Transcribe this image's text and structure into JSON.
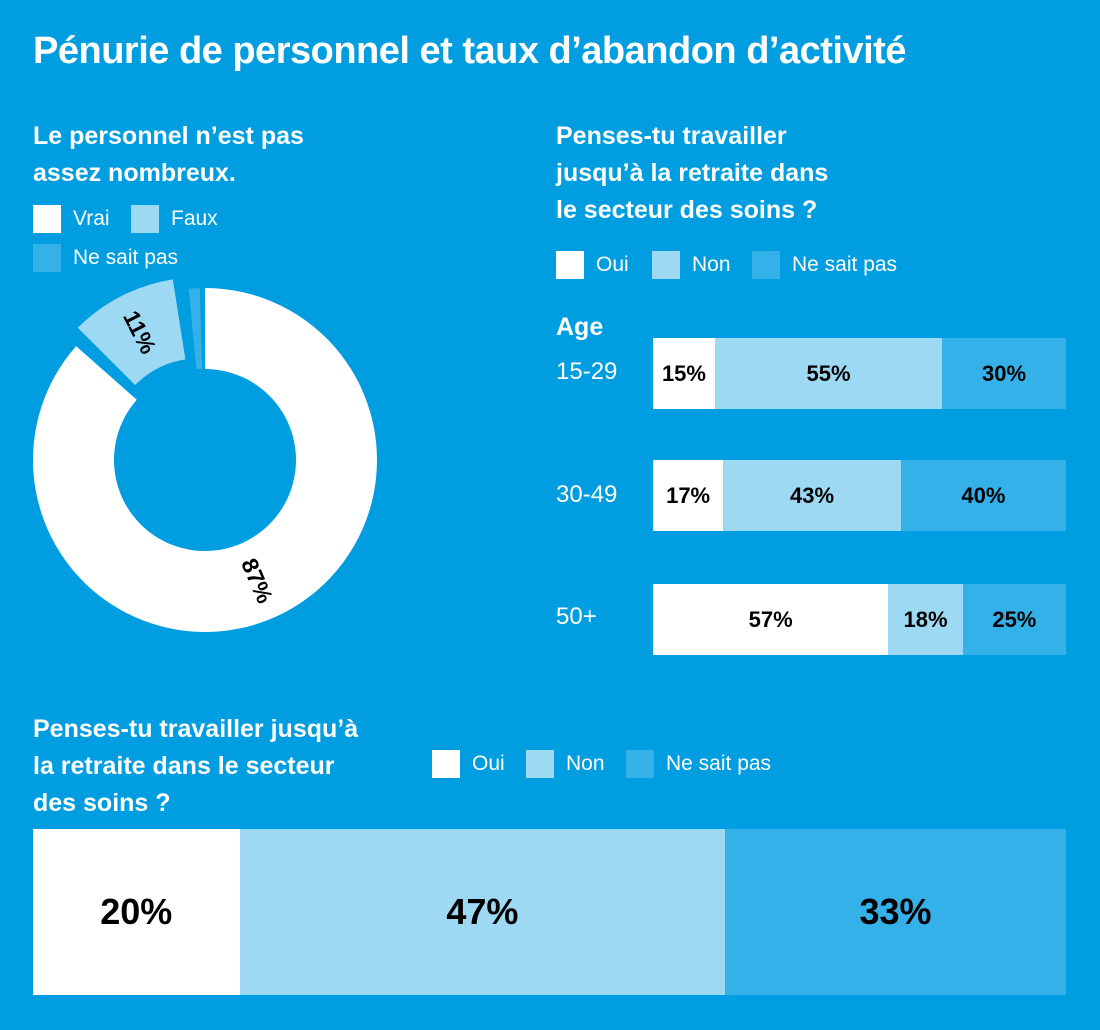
{
  "title": "Pénurie de personnel et taux d’abandon d’activité",
  "colors": {
    "background": "#009ee0",
    "white": "#ffffff",
    "light": "#9ed9f4",
    "mid": "#33b1e8"
  },
  "chart_data": [
    {
      "type": "pie",
      "title_lines": [
        "Le personnel n’est pas",
        "assez nombreux."
      ],
      "legend": [
        "Vrai",
        "Faux",
        "Ne sait pas"
      ],
      "categories": [
        "Vrai",
        "Faux",
        "Ne sait pas"
      ],
      "values": [
        87,
        11,
        2
      ],
      "data_labels": [
        "87%",
        "11%",
        ""
      ]
    },
    {
      "type": "bar",
      "stacked": true,
      "orientation": "horizontal",
      "title_lines": [
        "Penses-tu travailler",
        "jusqu’à la retraite dans",
        "le secteur des soins ?"
      ],
      "legend": [
        "Oui",
        "Non",
        "Ne sait pas"
      ],
      "axis_label": "Age",
      "categories": [
        "15-29",
        "30-49",
        "50+"
      ],
      "series": [
        {
          "name": "Oui",
          "values": [
            15,
            17,
            57
          ]
        },
        {
          "name": "Non",
          "values": [
            55,
            43,
            18
          ]
        },
        {
          "name": "Ne sait pas",
          "values": [
            30,
            40,
            25
          ]
        }
      ]
    },
    {
      "type": "bar",
      "stacked": true,
      "orientation": "horizontal",
      "title_lines": [
        "Penses-tu travailler jusqu’à",
        "la retraite dans le secteur",
        "des soins ?"
      ],
      "legend": [
        "Oui",
        "Non",
        "Ne sait pas"
      ],
      "series": [
        {
          "name": "Oui",
          "values": [
            20
          ]
        },
        {
          "name": "Non",
          "values": [
            47
          ]
        },
        {
          "name": "Ne sait pas",
          "values": [
            33
          ]
        }
      ]
    }
  ]
}
